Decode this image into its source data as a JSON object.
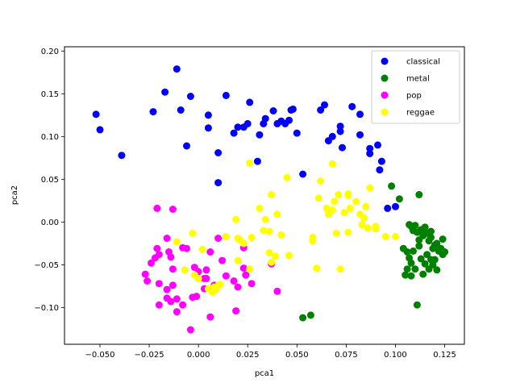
{
  "chart_data": {
    "type": "scatter",
    "title": "",
    "xlabel": "pca1",
    "ylabel": "pca2",
    "xlim": [
      -0.068,
      0.135
    ],
    "ylim": [
      -0.143,
      0.205
    ],
    "xticks": [
      -0.05,
      -0.025,
      0.0,
      0.025,
      0.05,
      0.075,
      0.1,
      0.125
    ],
    "xtick_labels": [
      "−0.050",
      "−0.025",
      "0.000",
      "0.025",
      "0.050",
      "0.075",
      "0.100",
      "0.125"
    ],
    "yticks": [
      -0.1,
      -0.05,
      0.0,
      0.05,
      0.1,
      0.15,
      0.2
    ],
    "ytick_labels": [
      "−0.10",
      "−0.05",
      "0.00",
      "0.05",
      "0.10",
      "0.15",
      "0.20"
    ],
    "grid": false,
    "legend_position": "top-right",
    "series": [
      {
        "name": "classical",
        "color": "#0000ff",
        "points": [
          [
            -0.052,
            0.126
          ],
          [
            -0.05,
            0.108
          ],
          [
            -0.039,
            0.078
          ],
          [
            -0.023,
            0.129
          ],
          [
            -0.017,
            0.152
          ],
          [
            -0.011,
            0.179
          ],
          [
            -0.009,
            0.131
          ],
          [
            -0.006,
            0.089
          ],
          [
            -0.004,
            0.147
          ],
          [
            0.005,
            0.125
          ],
          [
            0.005,
            0.11
          ],
          [
            0.01,
            0.081
          ],
          [
            0.01,
            0.046
          ],
          [
            0.014,
            0.148
          ],
          [
            0.018,
            0.104
          ],
          [
            0.02,
            0.111
          ],
          [
            0.023,
            0.111
          ],
          [
            0.025,
            0.115
          ],
          [
            0.026,
            0.14
          ],
          [
            0.03,
            0.071
          ],
          [
            0.031,
            0.102
          ],
          [
            0.033,
            0.115
          ],
          [
            0.034,
            0.121
          ],
          [
            0.038,
            0.13
          ],
          [
            0.04,
            0.115
          ],
          [
            0.042,
            0.118
          ],
          [
            0.044,
            0.115
          ],
          [
            0.046,
            0.119
          ],
          [
            0.047,
            0.131
          ],
          [
            0.048,
            0.132
          ],
          [
            0.05,
            0.104
          ],
          [
            0.053,
            0.056
          ],
          [
            0.062,
            0.131
          ],
          [
            0.064,
            0.137
          ],
          [
            0.066,
            0.095
          ],
          [
            0.068,
            0.1
          ],
          [
            0.072,
            0.112
          ],
          [
            0.072,
            0.106
          ],
          [
            0.073,
            0.087
          ],
          [
            0.078,
            0.135
          ],
          [
            0.082,
            0.126
          ],
          [
            0.082,
            0.102
          ],
          [
            0.087,
            0.08
          ],
          [
            0.087,
            0.086
          ],
          [
            0.091,
            0.09
          ],
          [
            0.092,
            0.061
          ],
          [
            0.093,
            0.071
          ],
          [
            0.096,
            0.016
          ],
          [
            0.1,
            0.018
          ]
        ]
      },
      {
        "name": "metal",
        "color": "#008000",
        "points": [
          [
            0.098,
            0.042
          ],
          [
            0.102,
            0.027
          ],
          [
            0.112,
            0.032
          ],
          [
            0.104,
            -0.031
          ],
          [
            0.107,
            -0.003
          ],
          [
            0.108,
            -0.005
          ],
          [
            0.109,
            -0.01
          ],
          [
            0.11,
            -0.004
          ],
          [
            0.111,
            -0.012
          ],
          [
            0.112,
            -0.021
          ],
          [
            0.113,
            -0.009
          ],
          [
            0.114,
            -0.016
          ],
          [
            0.115,
            -0.006
          ],
          [
            0.116,
            -0.013
          ],
          [
            0.117,
            -0.022
          ],
          [
            0.118,
            -0.011
          ],
          [
            0.118,
            -0.018
          ],
          [
            0.119,
            -0.031
          ],
          [
            0.12,
            -0.027
          ],
          [
            0.121,
            -0.025
          ],
          [
            0.122,
            -0.034
          ],
          [
            0.123,
            -0.031
          ],
          [
            0.124,
            -0.038
          ],
          [
            0.124,
            -0.02
          ],
          [
            0.125,
            -0.035
          ],
          [
            0.106,
            -0.035
          ],
          [
            0.107,
            -0.042
          ],
          [
            0.108,
            -0.048
          ],
          [
            0.109,
            -0.034
          ],
          [
            0.11,
            -0.055
          ],
          [
            0.112,
            -0.028
          ],
          [
            0.113,
            -0.043
          ],
          [
            0.114,
            -0.061
          ],
          [
            0.115,
            -0.049
          ],
          [
            0.116,
            -0.038
          ],
          [
            0.117,
            -0.055
          ],
          [
            0.118,
            -0.044
          ],
          [
            0.119,
            -0.05
          ],
          [
            0.12,
            -0.044
          ],
          [
            0.121,
            -0.056
          ],
          [
            0.105,
            -0.062
          ],
          [
            0.106,
            -0.055
          ],
          [
            0.108,
            -0.063
          ],
          [
            0.111,
            -0.097
          ],
          [
            0.053,
            -0.112
          ],
          [
            0.057,
            -0.109
          ]
        ]
      },
      {
        "name": "pop",
        "color": "#ff00ff",
        "points": [
          [
            -0.021,
            0.016
          ],
          [
            -0.013,
            0.015
          ],
          [
            -0.021,
            -0.031
          ],
          [
            -0.02,
            -0.038
          ],
          [
            -0.022,
            -0.042
          ],
          [
            -0.024,
            -0.048
          ],
          [
            -0.027,
            -0.061
          ],
          [
            -0.026,
            -0.069
          ],
          [
            -0.02,
            -0.072
          ],
          [
            -0.02,
            -0.097
          ],
          [
            -0.016,
            -0.019
          ],
          [
            -0.015,
            -0.035
          ],
          [
            -0.014,
            -0.041
          ],
          [
            -0.013,
            -0.055
          ],
          [
            -0.013,
            -0.074
          ],
          [
            -0.016,
            -0.079
          ],
          [
            -0.016,
            -0.089
          ],
          [
            -0.014,
            -0.093
          ],
          [
            -0.011,
            -0.09
          ],
          [
            -0.011,
            -0.105
          ],
          [
            -0.008,
            -0.097
          ],
          [
            -0.008,
            -0.03
          ],
          [
            -0.006,
            -0.031
          ],
          [
            -0.004,
            -0.126
          ],
          [
            -0.003,
            -0.088
          ],
          [
            -0.002,
            -0.053
          ],
          [
            -0.001,
            -0.087
          ],
          [
            0.0,
            -0.058
          ],
          [
            0.003,
            -0.066
          ],
          [
            0.003,
            -0.078
          ],
          [
            0.004,
            -0.066
          ],
          [
            0.006,
            -0.035
          ],
          [
            0.007,
            -0.081
          ],
          [
            0.008,
            -0.074
          ],
          [
            0.006,
            -0.111
          ],
          [
            0.01,
            -0.019
          ],
          [
            0.012,
            -0.045
          ],
          [
            0.014,
            -0.063
          ],
          [
            0.018,
            -0.069
          ],
          [
            0.019,
            -0.104
          ],
          [
            0.02,
            -0.076
          ],
          [
            0.023,
            -0.054
          ],
          [
            0.023,
            -0.03
          ],
          [
            0.024,
            -0.062
          ],
          [
            0.027,
            -0.072
          ],
          [
            0.037,
            -0.049
          ],
          [
            0.04,
            -0.081
          ],
          [
            0.004,
            -0.056
          ]
        ]
      },
      {
        "name": "reggae",
        "color": "#ffff00",
        "points": [
          [
            -0.011,
            -0.023
          ],
          [
            -0.007,
            -0.056
          ],
          [
            -0.003,
            -0.013
          ],
          [
            -0.002,
            -0.062
          ],
          [
            0.0,
            -0.066
          ],
          [
            0.002,
            -0.032
          ],
          [
            0.005,
            -0.078
          ],
          [
            0.007,
            -0.082
          ],
          [
            0.008,
            -0.076
          ],
          [
            0.009,
            -0.079
          ],
          [
            0.01,
            -0.074
          ],
          [
            0.011,
            -0.073
          ],
          [
            0.014,
            -0.017
          ],
          [
            0.019,
            0.003
          ],
          [
            0.02,
            -0.019
          ],
          [
            0.02,
            -0.045
          ],
          [
            0.021,
            -0.021
          ],
          [
            0.023,
            -0.025
          ],
          [
            0.026,
            -0.055
          ],
          [
            0.027,
            -0.018
          ],
          [
            0.026,
            0.069
          ],
          [
            0.031,
            0.016
          ],
          [
            0.033,
            -0.01
          ],
          [
            0.034,
            0.003
          ],
          [
            0.036,
            -0.011
          ],
          [
            0.036,
            -0.036
          ],
          [
            0.037,
            -0.047
          ],
          [
            0.037,
            0.032
          ],
          [
            0.039,
            -0.04
          ],
          [
            0.04,
            0.009
          ],
          [
            0.042,
            -0.015
          ],
          [
            0.045,
            0.052
          ],
          [
            0.046,
            -0.039
          ],
          [
            0.058,
            -0.018
          ],
          [
            0.058,
            -0.022
          ],
          [
            0.06,
            -0.054
          ],
          [
            0.062,
            0.048
          ],
          [
            0.065,
            0.016
          ],
          [
            0.066,
            0.009
          ],
          [
            0.068,
            0.068
          ],
          [
            0.068,
            0.014
          ],
          [
            0.069,
            0.024
          ],
          [
            0.07,
            -0.013
          ],
          [
            0.071,
            0.032
          ],
          [
            0.072,
            -0.055
          ],
          [
            0.076,
            0.031
          ],
          [
            0.076,
            0.033
          ],
          [
            0.076,
            -0.012
          ],
          [
            0.077,
            0.016
          ],
          [
            0.08,
            0.024
          ],
          [
            0.082,
            0.009
          ],
          [
            0.083,
            -0.003
          ],
          [
            0.084,
            0.005
          ],
          [
            0.085,
            0.018
          ],
          [
            0.086,
            -0.007
          ],
          [
            0.087,
            0.04
          ],
          [
            0.09,
            -0.005
          ],
          [
            0.09,
            -0.008
          ],
          [
            0.095,
            -0.017
          ],
          [
            0.1,
            -0.017
          ],
          [
            0.061,
            0.028
          ],
          [
            0.074,
            0.011
          ]
        ]
      }
    ]
  }
}
